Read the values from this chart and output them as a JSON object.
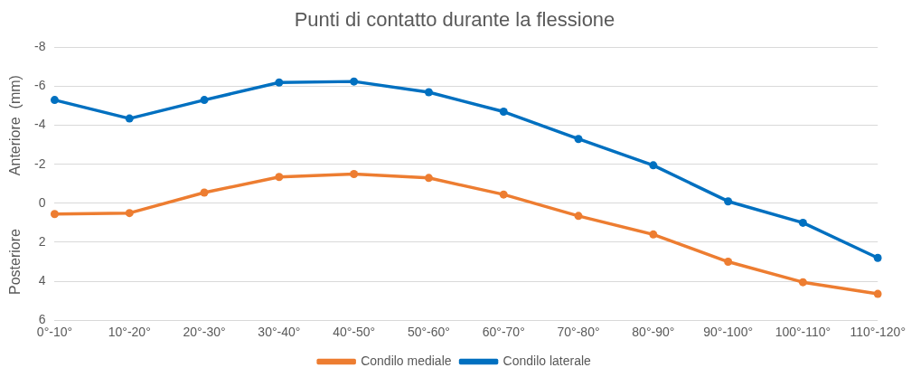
{
  "chart_data": {
    "type": "line",
    "title": "Punti di contatto durante la flessione",
    "ylabel": "Anteriore  (mm)",
    "annotations": [
      "Posteriore"
    ],
    "categories": [
      "0°-10°",
      "10°-20°",
      "20°-30°",
      "30°-40°",
      "40°-50°",
      "50°-60°",
      "60°-70°",
      "70°-80°",
      "80°-90°",
      "90°-100°",
      "100°-110°",
      "110°-120°"
    ],
    "series": [
      {
        "name": "Condilo mediale",
        "color": "#ed7d31",
        "values": [
          0.55,
          0.5,
          -0.55,
          -1.35,
          -1.5,
          -1.3,
          -0.45,
          0.65,
          1.6,
          3.0,
          4.05,
          4.65
        ]
      },
      {
        "name": "Condilo laterale",
        "color": "#0070c0",
        "values": [
          -5.3,
          -4.35,
          -5.3,
          -6.2,
          -6.25,
          -5.7,
          -4.7,
          -3.3,
          -1.95,
          -0.1,
          1.0,
          2.8
        ]
      }
    ],
    "ylim": [
      6,
      -8
    ],
    "yticks": [
      -8,
      -6,
      -4,
      -2,
      0,
      2,
      4,
      6
    ],
    "grid": "y",
    "legend": "bottom",
    "marker": "circle",
    "line_style": "solid"
  }
}
